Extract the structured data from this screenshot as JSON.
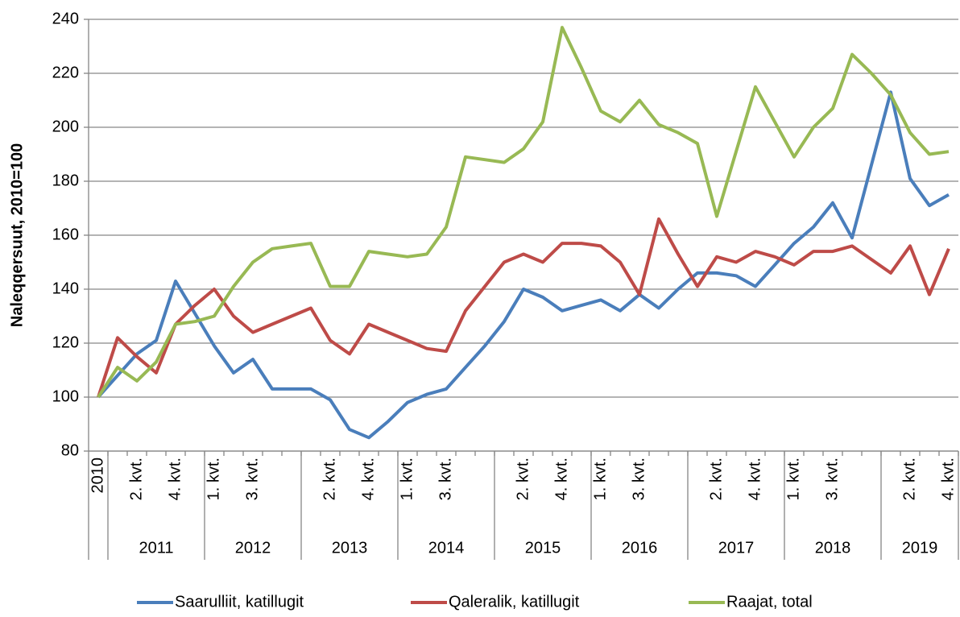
{
  "chart_data": {
    "type": "line",
    "y_label": "Naleqqersuut, 2010=100",
    "categories": [
      "2010",
      null,
      "2. kvt.",
      null,
      "4. kvt.",
      null,
      "1. kvt.",
      null,
      "3. kvt.",
      null,
      null,
      null,
      "2. kvt.",
      null,
      "4. kvt.",
      null,
      "1. kvt.",
      null,
      "3. kvt.",
      null,
      null,
      null,
      "2. kvt.",
      null,
      "4. kvt.",
      null,
      "1. kvt.",
      null,
      "3. kvt.",
      null,
      null,
      null,
      "2. kvt.",
      null,
      "4. kvt.",
      null,
      "1. kvt.",
      null,
      "3. kvt.",
      null,
      null,
      null,
      "2. kvt.",
      null,
      "4. kvt."
    ],
    "groups": [
      {
        "label": "2011",
        "from": 1,
        "to": 5
      },
      {
        "label": "2012",
        "from": 6,
        "to": 10
      },
      {
        "label": "2013",
        "from": 11,
        "to": 15
      },
      {
        "label": "2014",
        "from": 16,
        "to": 20
      },
      {
        "label": "2015",
        "from": 21,
        "to": 25
      },
      {
        "label": "2016",
        "from": 26,
        "to": 30
      },
      {
        "label": "2017",
        "from": 31,
        "to": 35
      },
      {
        "label": "2018",
        "from": 36,
        "to": 40
      },
      {
        "label": "2019",
        "from": 41,
        "to": 44
      }
    ],
    "series": [
      {
        "name": "Saarulliit, katillugit",
        "color": "#4a7ebb",
        "values": [
          100,
          108,
          116,
          121,
          143,
          131,
          119,
          109,
          114,
          103,
          103,
          103,
          99,
          88,
          85,
          91,
          98,
          101,
          103,
          111,
          119,
          128,
          140,
          137,
          132,
          134,
          136,
          132,
          138,
          133,
          140,
          146,
          146,
          145,
          141,
          149,
          157,
          163,
          172,
          159,
          186,
          213,
          181,
          171,
          175
        ]
      },
      {
        "name": "Qaleralik, katillugit",
        "color": "#be4b48",
        "values": [
          100,
          122,
          115,
          109,
          127,
          134,
          140,
          130,
          124,
          127,
          130,
          133,
          121,
          116,
          127,
          124,
          121,
          118,
          117,
          132,
          141,
          150,
          153,
          150,
          157,
          157,
          156,
          150,
          138,
          166,
          153,
          141,
          152,
          150,
          154,
          152,
          149,
          154,
          154,
          156,
          151,
          146,
          156,
          138,
          155
        ]
      },
      {
        "name": "Raajat, total",
        "color": "#98b954",
        "values": [
          100,
          111,
          106,
          113,
          127,
          128,
          130,
          141,
          150,
          155,
          156,
          157,
          141,
          141,
          154,
          153,
          152,
          153,
          163,
          189,
          188,
          187,
          192,
          202,
          237,
          222,
          206,
          202,
          210,
          201,
          198,
          194,
          167,
          191,
          215,
          202,
          189,
          200,
          207,
          227,
          220,
          212,
          198,
          190,
          191
        ]
      }
    ],
    "ylim": [
      80,
      240
    ],
    "yticks": [
      80,
      100,
      120,
      140,
      160,
      180,
      200,
      220,
      240
    ],
    "grid": true,
    "legend": "bottom"
  }
}
